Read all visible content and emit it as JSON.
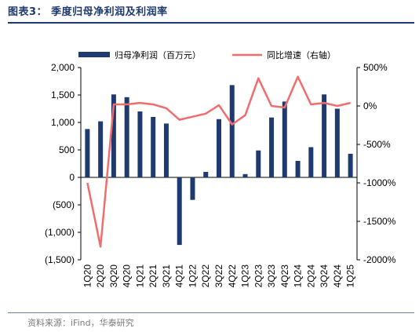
{
  "title": "图表3：  季度归母净利润及利润率",
  "source": "资料来源：iFind，华泰研究",
  "chart_data": {
    "type": "bar",
    "categories": [
      "1Q20",
      "2Q20",
      "3Q20",
      "4Q20",
      "1Q21",
      "2Q21",
      "3Q21",
      "4Q21",
      "1Q22",
      "2Q22",
      "3Q22",
      "4Q22",
      "1Q23",
      "2Q23",
      "3Q23",
      "4Q23",
      "1Q24",
      "2Q24",
      "3Q24",
      "4Q24",
      "1Q25"
    ],
    "series": [
      {
        "name": "归母净利润（百万元）",
        "type": "bar",
        "axis": "left",
        "color": "#1f3a6e",
        "values": [
          880,
          1020,
          1510,
          1460,
          1200,
          1100,
          980,
          -1230,
          -410,
          100,
          1060,
          1680,
          60,
          490,
          1090,
          1380,
          300,
          550,
          1510,
          1250,
          430
        ]
      },
      {
        "name": "同比增速（右轴）",
        "type": "line",
        "axis": "right",
        "color": "#f16d6d",
        "values": [
          -1000,
          -1830,
          20,
          20,
          40,
          20,
          -30,
          -180,
          -140,
          -100,
          10,
          -240,
          -120,
          360,
          0,
          -20,
          380,
          20,
          40,
          0,
          40
        ]
      }
    ],
    "y_left": {
      "min": -1500,
      "max": 2000,
      "ticks": [
        2000,
        1500,
        1000,
        500,
        0,
        -500,
        -1000,
        -1500
      ],
      "tick_labels": [
        "2,000",
        "1,500",
        "1,000",
        "500",
        "0",
        "(500)",
        "(1,000)",
        "(1,500)"
      ]
    },
    "y_right": {
      "min": -2000,
      "max": 500,
      "ticks": [
        500,
        0,
        -500,
        -1000,
        -1500,
        -2000
      ],
      "tick_labels": [
        "500%",
        "0%",
        "-500%",
        "-1000%",
        "-1500%",
        "-2000%"
      ]
    },
    "legend": {
      "position": "top"
    },
    "grid": false
  }
}
